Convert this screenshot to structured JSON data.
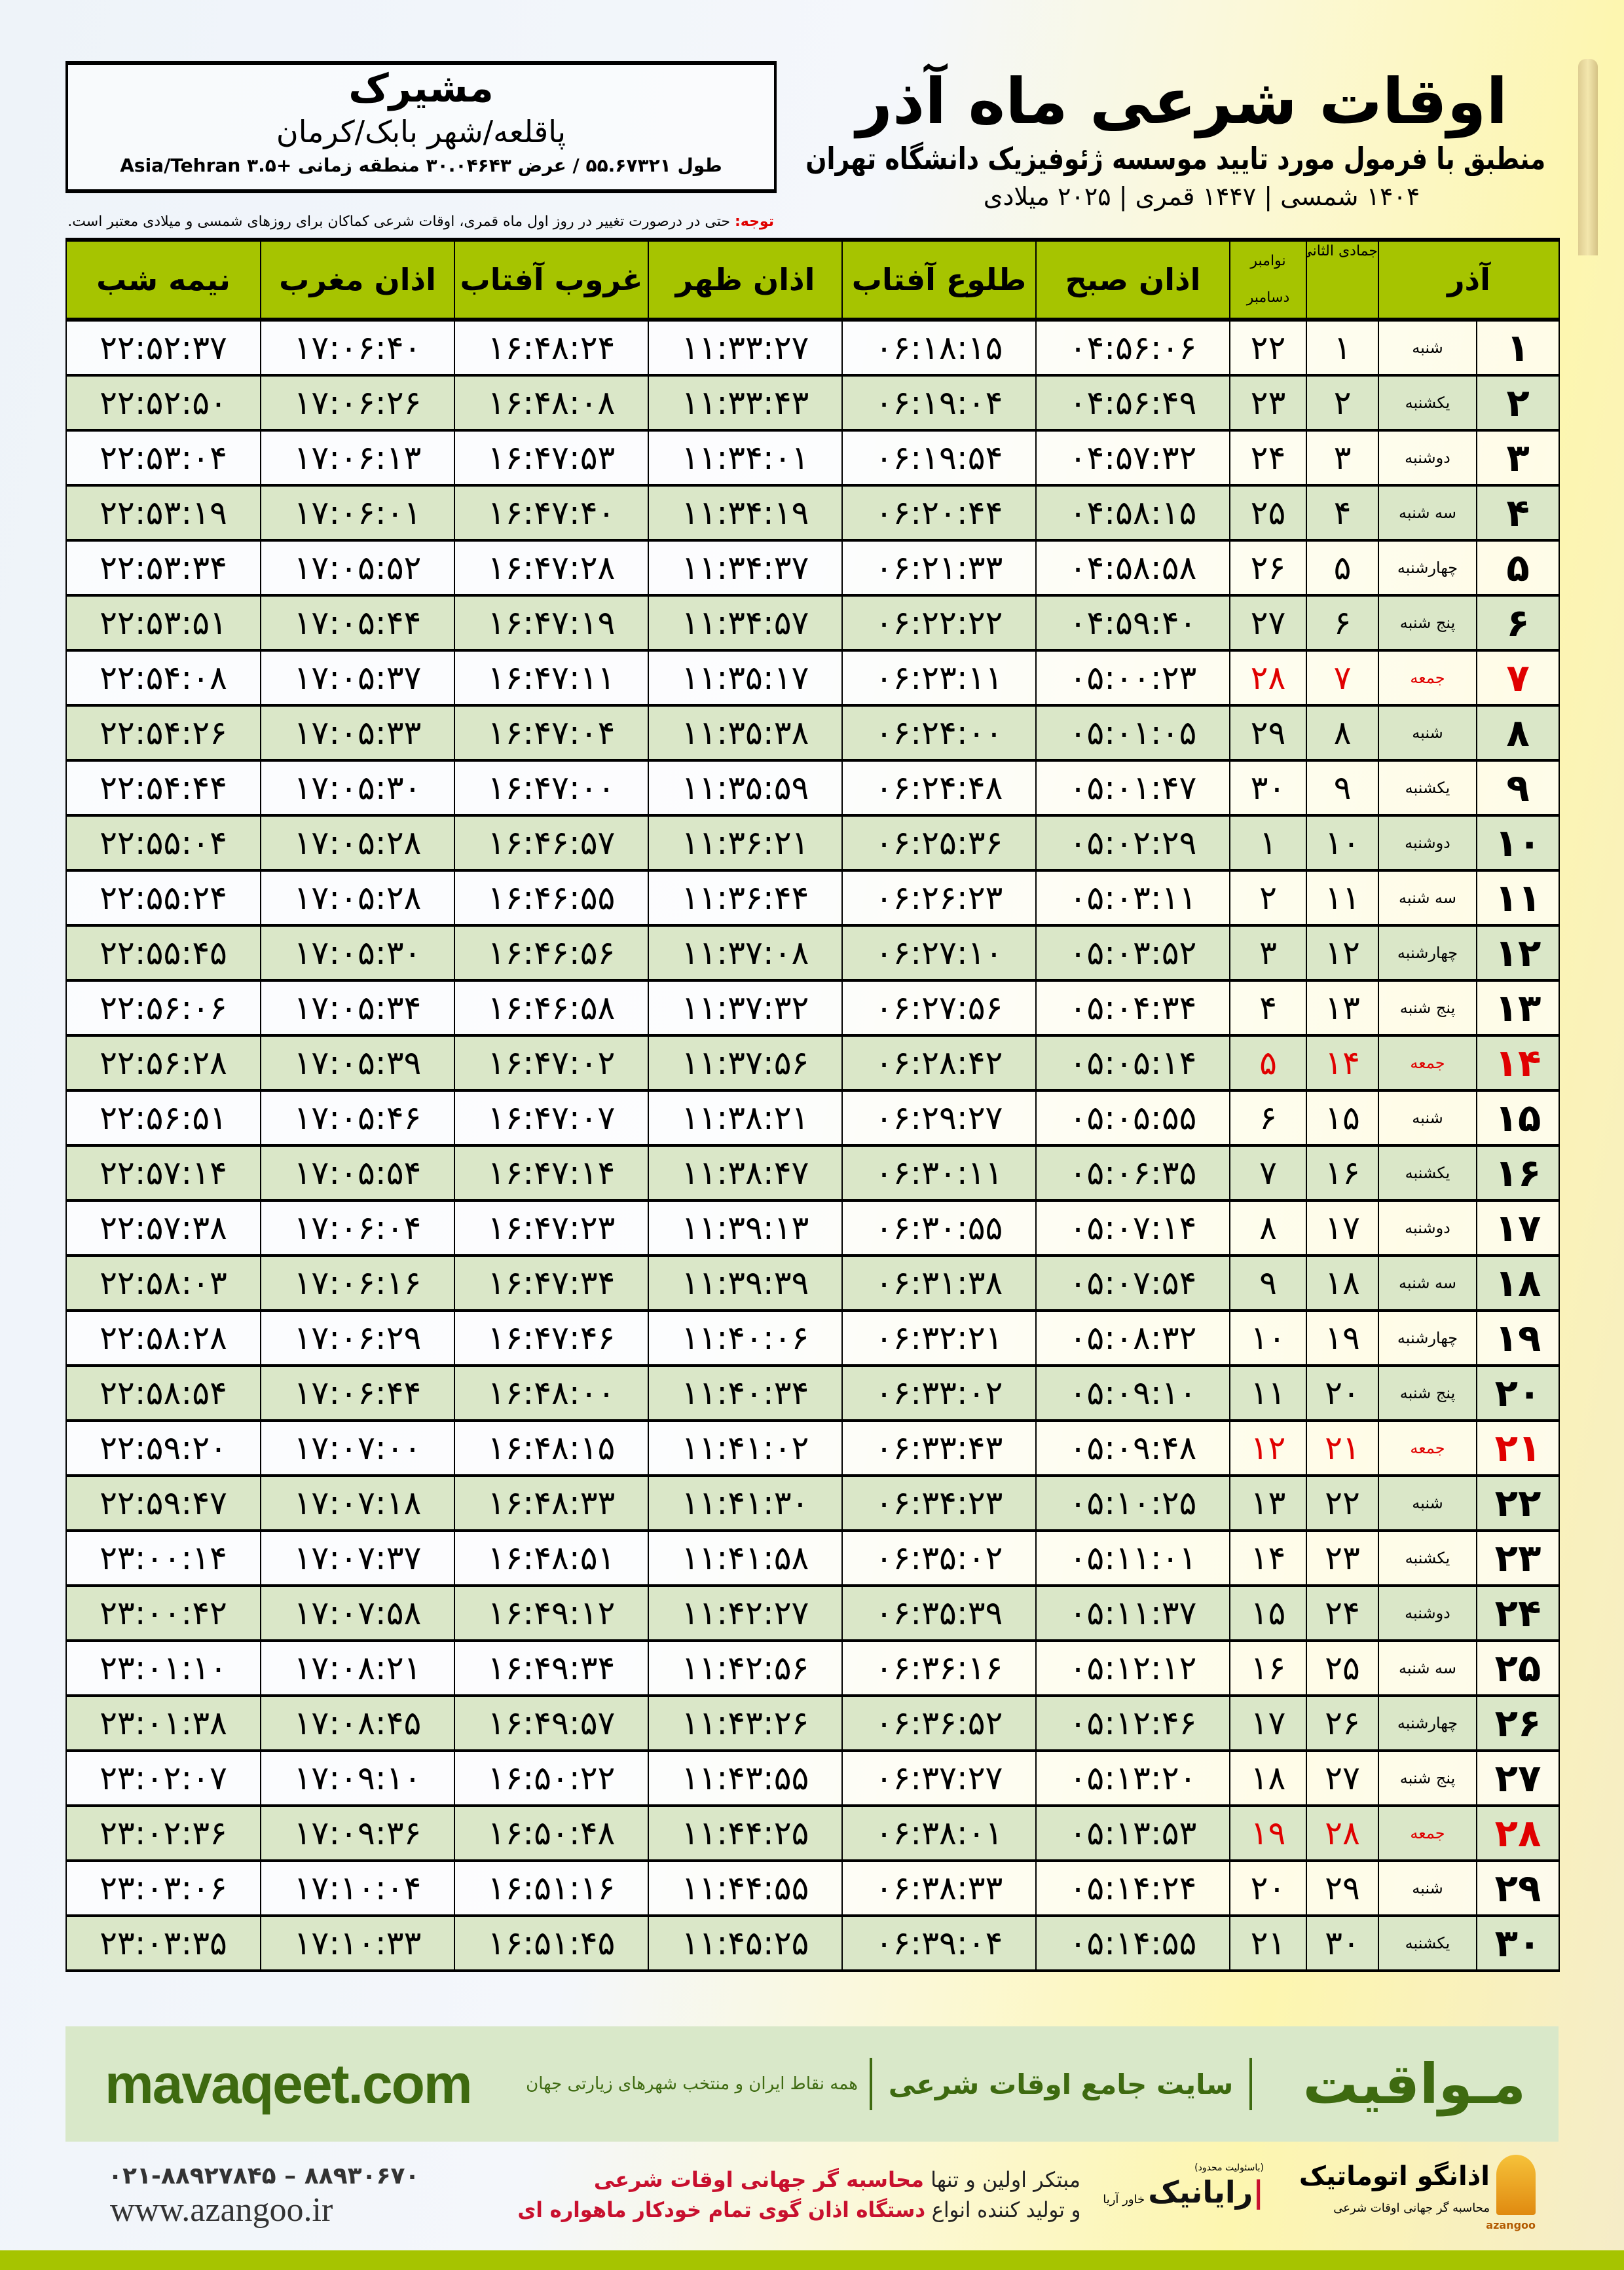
{
  "location": {
    "name": "مشیرک",
    "path": "پاقلعه/شهر بابک/کرمان",
    "coords": "طول ۵۵.۶۷۳۲۱ / عرض ۳۰.۰۴۶۴۳ منطقه زمانی +۳.۵ Asia/Tehran"
  },
  "header": {
    "title": "اوقات شرعی ماه آذر",
    "subtitle": "منطبق با فرمول مورد تایید موسسه ژئوفیزیک دانشگاه تهران",
    "dateline": "۱۴۰۴ شمسی | ۱۴۴۷ قمری | ۲۰۲۵ میلادی",
    "note_label": "توجه:",
    "note_text": " حتی در درصورت تغییر در روز اول ماه قمری، اوقات شرعی کماکان برای روزهای شمسی و میلادی معتبر است."
  },
  "colors": {
    "header_green": "#a6c400",
    "row_green": "#dae7c8",
    "friday_red": "#e00000",
    "brand_green": "#3e6a10"
  },
  "table": {
    "columns": {
      "azar": "آذر",
      "hijri": "جمادی الثانی",
      "greg_top": "نوامبر",
      "greg_bottom": "دسامبر",
      "fajr": "اذان صبح",
      "sunrise": "طلوع آفتاب",
      "dhuhr": "اذان ظهر",
      "sunset": "غروب آفتاب",
      "maghrib": "اذان مغرب",
      "midnight": "نیمه شب"
    },
    "rows": [
      [
        "۱",
        "شنبه",
        "۱",
        "۲۲",
        "۰۴:۵۶:۰۶",
        "۰۶:۱۸:۱۵",
        "۱۱:۳۳:۲۷",
        "۱۶:۴۸:۲۴",
        "۱۷:۰۶:۴۰",
        "۲۲:۵۲:۳۷"
      ],
      [
        "۲",
        "یکشنبه",
        "۲",
        "۲۳",
        "۰۴:۵۶:۴۹",
        "۰۶:۱۹:۰۴",
        "۱۱:۳۳:۴۳",
        "۱۶:۴۸:۰۸",
        "۱۷:۰۶:۲۶",
        "۲۲:۵۲:۵۰"
      ],
      [
        "۳",
        "دوشنبه",
        "۳",
        "۲۴",
        "۰۴:۵۷:۳۲",
        "۰۶:۱۹:۵۴",
        "۱۱:۳۴:۰۱",
        "۱۶:۴۷:۵۳",
        "۱۷:۰۶:۱۳",
        "۲۲:۵۳:۰۴"
      ],
      [
        "۴",
        "سه شنبه",
        "۴",
        "۲۵",
        "۰۴:۵۸:۱۵",
        "۰۶:۲۰:۴۴",
        "۱۱:۳۴:۱۹",
        "۱۶:۴۷:۴۰",
        "۱۷:۰۶:۰۱",
        "۲۲:۵۳:۱۹"
      ],
      [
        "۵",
        "چهارشنبه",
        "۵",
        "۲۶",
        "۰۴:۵۸:۵۸",
        "۰۶:۲۱:۳۳",
        "۱۱:۳۴:۳۷",
        "۱۶:۴۷:۲۸",
        "۱۷:۰۵:۵۲",
        "۲۲:۵۳:۳۴"
      ],
      [
        "۶",
        "پنج شنبه",
        "۶",
        "۲۷",
        "۰۴:۵۹:۴۰",
        "۰۶:۲۲:۲۲",
        "۱۱:۳۴:۵۷",
        "۱۶:۴۷:۱۹",
        "۱۷:۰۵:۴۴",
        "۲۲:۵۳:۵۱"
      ],
      [
        "۷",
        "جمعه",
        "۷",
        "۲۸",
        "۰۵:۰۰:۲۳",
        "۰۶:۲۳:۱۱",
        "۱۱:۳۵:۱۷",
        "۱۶:۴۷:۱۱",
        "۱۷:۰۵:۳۷",
        "۲۲:۵۴:۰۸"
      ],
      [
        "۸",
        "شنبه",
        "۸",
        "۲۹",
        "۰۵:۰۱:۰۵",
        "۰۶:۲۴:۰۰",
        "۱۱:۳۵:۳۸",
        "۱۶:۴۷:۰۴",
        "۱۷:۰۵:۳۳",
        "۲۲:۵۴:۲۶"
      ],
      [
        "۹",
        "یکشنبه",
        "۹",
        "۳۰",
        "۰۵:۰۱:۴۷",
        "۰۶:۲۴:۴۸",
        "۱۱:۳۵:۵۹",
        "۱۶:۴۷:۰۰",
        "۱۷:۰۵:۳۰",
        "۲۲:۵۴:۴۴"
      ],
      [
        "۱۰",
        "دوشنبه",
        "۱۰",
        "۱",
        "۰۵:۰۲:۲۹",
        "۰۶:۲۵:۳۶",
        "۱۱:۳۶:۲۱",
        "۱۶:۴۶:۵۷",
        "۱۷:۰۵:۲۸",
        "۲۲:۵۵:۰۴"
      ],
      [
        "۱۱",
        "سه شنبه",
        "۱۱",
        "۲",
        "۰۵:۰۳:۱۱",
        "۰۶:۲۶:۲۳",
        "۱۱:۳۶:۴۴",
        "۱۶:۴۶:۵۵",
        "۱۷:۰۵:۲۸",
        "۲۲:۵۵:۲۴"
      ],
      [
        "۱۲",
        "چهارشنبه",
        "۱۲",
        "۳",
        "۰۵:۰۳:۵۲",
        "۰۶:۲۷:۱۰",
        "۱۱:۳۷:۰۸",
        "۱۶:۴۶:۵۶",
        "۱۷:۰۵:۳۰",
        "۲۲:۵۵:۴۵"
      ],
      [
        "۱۳",
        "پنج شنبه",
        "۱۳",
        "۴",
        "۰۵:۰۴:۳۴",
        "۰۶:۲۷:۵۶",
        "۱۱:۳۷:۳۲",
        "۱۶:۴۶:۵۸",
        "۱۷:۰۵:۳۴",
        "۲۲:۵۶:۰۶"
      ],
      [
        "۱۴",
        "جمعه",
        "۱۴",
        "۵",
        "۰۵:۰۵:۱۴",
        "۰۶:۲۸:۴۲",
        "۱۱:۳۷:۵۶",
        "۱۶:۴۷:۰۲",
        "۱۷:۰۵:۳۹",
        "۲۲:۵۶:۲۸"
      ],
      [
        "۱۵",
        "شنبه",
        "۱۵",
        "۶",
        "۰۵:۰۵:۵۵",
        "۰۶:۲۹:۲۷",
        "۱۱:۳۸:۲۱",
        "۱۶:۴۷:۰۷",
        "۱۷:۰۵:۴۶",
        "۲۲:۵۶:۵۱"
      ],
      [
        "۱۶",
        "یکشنبه",
        "۱۶",
        "۷",
        "۰۵:۰۶:۳۵",
        "۰۶:۳۰:۱۱",
        "۱۱:۳۸:۴۷",
        "۱۶:۴۷:۱۴",
        "۱۷:۰۵:۵۴",
        "۲۲:۵۷:۱۴"
      ],
      [
        "۱۷",
        "دوشنبه",
        "۱۷",
        "۸",
        "۰۵:۰۷:۱۴",
        "۰۶:۳۰:۵۵",
        "۱۱:۳۹:۱۳",
        "۱۶:۴۷:۲۳",
        "۱۷:۰۶:۰۴",
        "۲۲:۵۷:۳۸"
      ],
      [
        "۱۸",
        "سه شنبه",
        "۱۸",
        "۹",
        "۰۵:۰۷:۵۴",
        "۰۶:۳۱:۳۸",
        "۱۱:۳۹:۳۹",
        "۱۶:۴۷:۳۴",
        "۱۷:۰۶:۱۶",
        "۲۲:۵۸:۰۳"
      ],
      [
        "۱۹",
        "چهارشنبه",
        "۱۹",
        "۱۰",
        "۰۵:۰۸:۳۲",
        "۰۶:۳۲:۲۱",
        "۱۱:۴۰:۰۶",
        "۱۶:۴۷:۴۶",
        "۱۷:۰۶:۲۹",
        "۲۲:۵۸:۲۸"
      ],
      [
        "۲۰",
        "پنج شنبه",
        "۲۰",
        "۱۱",
        "۰۵:۰۹:۱۰",
        "۰۶:۳۳:۰۲",
        "۱۱:۴۰:۳۴",
        "۱۶:۴۸:۰۰",
        "۱۷:۰۶:۴۴",
        "۲۲:۵۸:۵۴"
      ],
      [
        "۲۱",
        "جمعه",
        "۲۱",
        "۱۲",
        "۰۵:۰۹:۴۸",
        "۰۶:۳۳:۴۳",
        "۱۱:۴۱:۰۲",
        "۱۶:۴۸:۱۵",
        "۱۷:۰۷:۰۰",
        "۲۲:۵۹:۲۰"
      ],
      [
        "۲۲",
        "شنبه",
        "۲۲",
        "۱۳",
        "۰۵:۱۰:۲۵",
        "۰۶:۳۴:۲۳",
        "۱۱:۴۱:۳۰",
        "۱۶:۴۸:۳۳",
        "۱۷:۰۷:۱۸",
        "۲۲:۵۹:۴۷"
      ],
      [
        "۲۳",
        "یکشنبه",
        "۲۳",
        "۱۴",
        "۰۵:۱۱:۰۱",
        "۰۶:۳۵:۰۲",
        "۱۱:۴۱:۵۸",
        "۱۶:۴۸:۵۱",
        "۱۷:۰۷:۳۷",
        "۲۳:۰۰:۱۴"
      ],
      [
        "۲۴",
        "دوشنبه",
        "۲۴",
        "۱۵",
        "۰۵:۱۱:۳۷",
        "۰۶:۳۵:۳۹",
        "۱۱:۴۲:۲۷",
        "۱۶:۴۹:۱۲",
        "۱۷:۰۷:۵۸",
        "۲۳:۰۰:۴۲"
      ],
      [
        "۲۵",
        "سه شنبه",
        "۲۵",
        "۱۶",
        "۰۵:۱۲:۱۲",
        "۰۶:۳۶:۱۶",
        "۱۱:۴۲:۵۶",
        "۱۶:۴۹:۳۴",
        "۱۷:۰۸:۲۱",
        "۲۳:۰۱:۱۰"
      ],
      [
        "۲۶",
        "چهارشنبه",
        "۲۶",
        "۱۷",
        "۰۵:۱۲:۴۶",
        "۰۶:۳۶:۵۲",
        "۱۱:۴۳:۲۶",
        "۱۶:۴۹:۵۷",
        "۱۷:۰۸:۴۵",
        "۲۳:۰۱:۳۸"
      ],
      [
        "۲۷",
        "پنج شنبه",
        "۲۷",
        "۱۸",
        "۰۵:۱۳:۲۰",
        "۰۶:۳۷:۲۷",
        "۱۱:۴۳:۵۵",
        "۱۶:۵۰:۲۲",
        "۱۷:۰۹:۱۰",
        "۲۳:۰۲:۰۷"
      ],
      [
        "۲۸",
        "جمعه",
        "۲۸",
        "۱۹",
        "۰۵:۱۳:۵۳",
        "۰۶:۳۸:۰۱",
        "۱۱:۴۴:۲۵",
        "۱۶:۵۰:۴۸",
        "۱۷:۰۹:۳۶",
        "۲۳:۰۲:۳۶"
      ],
      [
        "۲۹",
        "شنبه",
        "۲۹",
        "۲۰",
        "۰۵:۱۴:۲۴",
        "۰۶:۳۸:۳۳",
        "۱۱:۴۴:۵۵",
        "۱۶:۵۱:۱۶",
        "۱۷:۱۰:۰۴",
        "۲۳:۰۳:۰۶"
      ],
      [
        "۳۰",
        "یکشنبه",
        "۳۰",
        "۲۱",
        "۰۵:۱۴:۵۵",
        "۰۶:۳۹:۰۴",
        "۱۱:۴۵:۲۵",
        "۱۶:۵۱:۴۵",
        "۱۷:۱۰:۳۳",
        "۲۳:۰۳:۳۵"
      ]
    ]
  },
  "footer": {
    "brand": "مـواقیت",
    "tagline": "سایت جامع اوقات شرعی",
    "tagline2": "همه نقاط ایران و منتخب شهرهای زیارتی جهان",
    "site": "mavaqeet.com",
    "promo_line1_plain": "مبتکر اولین و تنها ",
    "promo_line1_red": "محاسبه گر جهانی اوقات شرعی",
    "promo_line2_plain": "و تولید کننده انواع ",
    "promo_line2_red": "دستگاه اذان گوی تمام خودکار ماهواره ای",
    "phone": "۰۲۱-۸۸۹۲۷۸۴۵ – ۸۸۹۳۰۶۷۰",
    "www": "www.azangoo.ir",
    "logo1_name": "رایانیک",
    "logo1_sub": "خاور آریا",
    "logo1_note": "(باسئولیت محدود)",
    "logo2_name": "اذانگو اتوماتیک",
    "logo2_sub": "محاسبه گر جهانی اوقات شرعی",
    "logo2_latin": "azangoo"
  }
}
